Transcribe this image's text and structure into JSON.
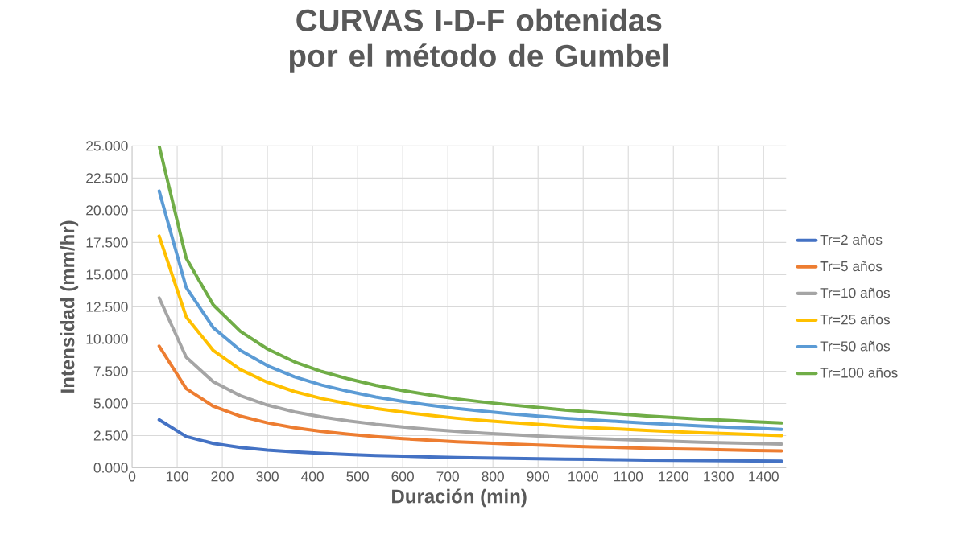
{
  "chart_data": {
    "type": "line",
    "title": "CURVAS I-D-F obtenidas por el método de Gumbel",
    "xlabel": "Duración (min)",
    "ylabel": "Intensidad (mm/hr)",
    "x": [
      60,
      120,
      180,
      240,
      300,
      360,
      420,
      480,
      540,
      600,
      660,
      720,
      780,
      840,
      900,
      960,
      1020,
      1080,
      1140,
      1200,
      1260,
      1320,
      1380,
      1440
    ],
    "series": [
      {
        "name": "Tr=2 años",
        "color": "#4472c4",
        "values": [
          3.73,
          2.43,
          1.89,
          1.58,
          1.38,
          1.23,
          1.12,
          1.03,
          0.95,
          0.9,
          0.84,
          0.8,
          0.76,
          0.73,
          0.7,
          0.67,
          0.65,
          0.62,
          0.6,
          0.58,
          0.56,
          0.55,
          0.53,
          0.52
        ]
      },
      {
        "name": "Tr=5 años",
        "color": "#ed7d31",
        "values": [
          9.45,
          6.15,
          4.78,
          4.01,
          3.49,
          3.11,
          2.83,
          2.61,
          2.42,
          2.27,
          2.14,
          2.02,
          1.93,
          1.84,
          1.77,
          1.69,
          1.63,
          1.58,
          1.52,
          1.47,
          1.43,
          1.39,
          1.35,
          1.31
        ]
      },
      {
        "name": "Tr=10 años",
        "color": "#a5a5a5",
        "values": [
          13.2,
          8.59,
          6.68,
          5.6,
          4.87,
          4.34,
          3.95,
          3.64,
          3.38,
          3.17,
          2.98,
          2.82,
          2.69,
          2.57,
          2.47,
          2.36,
          2.28,
          2.2,
          2.13,
          2.06,
          1.99,
          1.94,
          1.89,
          1.84
        ]
      },
      {
        "name": "Tr=25 años",
        "color": "#ffc000",
        "values": [
          18.0,
          11.72,
          9.11,
          7.63,
          6.64,
          5.92,
          5.38,
          4.97,
          4.61,
          4.32,
          4.07,
          3.85,
          3.67,
          3.51,
          3.37,
          3.22,
          3.11,
          3.01,
          2.9,
          2.81,
          2.72,
          2.65,
          2.57,
          2.5
        ]
      },
      {
        "name": "Tr=50 años",
        "color": "#5b9bd5",
        "values": [
          21.5,
          14.0,
          10.88,
          9.12,
          7.93,
          7.07,
          6.43,
          5.93,
          5.5,
          5.16,
          4.86,
          4.6,
          4.39,
          4.19,
          4.02,
          3.85,
          3.72,
          3.59,
          3.46,
          3.35,
          3.25,
          3.16,
          3.07,
          2.99
        ]
      },
      {
        "name": "Tr=100 años",
        "color": "#70ad47",
        "values": [
          25.0,
          16.28,
          12.65,
          10.6,
          9.23,
          8.23,
          7.48,
          6.9,
          6.4,
          6.0,
          5.65,
          5.35,
          5.1,
          4.88,
          4.68,
          4.48,
          4.33,
          4.18,
          4.03,
          3.9,
          3.78,
          3.68,
          3.58,
          3.48
        ]
      }
    ],
    "xlim": [
      0,
      1450
    ],
    "xticks": [
      0,
      100,
      200,
      300,
      400,
      500,
      600,
      700,
      800,
      900,
      1000,
      1100,
      1200,
      1300,
      1400
    ],
    "ylim": [
      0,
      25
    ],
    "yticks": [
      {
        "value": 0,
        "label": "0.000"
      },
      {
        "value": 2.5,
        "label": "2.500"
      },
      {
        "value": 5,
        "label": "5.000"
      },
      {
        "value": 7.5,
        "label": "7.500"
      },
      {
        "value": 10,
        "label": "10.000"
      },
      {
        "value": 12.5,
        "label": "12.500"
      },
      {
        "value": 15,
        "label": "15.000"
      },
      {
        "value": 17.5,
        "label": "17.500"
      },
      {
        "value": 20,
        "label": "20.000"
      },
      {
        "value": 22.5,
        "label": "22.500"
      },
      {
        "value": 25,
        "label": "25.000"
      }
    ],
    "grid": true,
    "legend": "right",
    "marker": "none",
    "line_style": "solid"
  }
}
